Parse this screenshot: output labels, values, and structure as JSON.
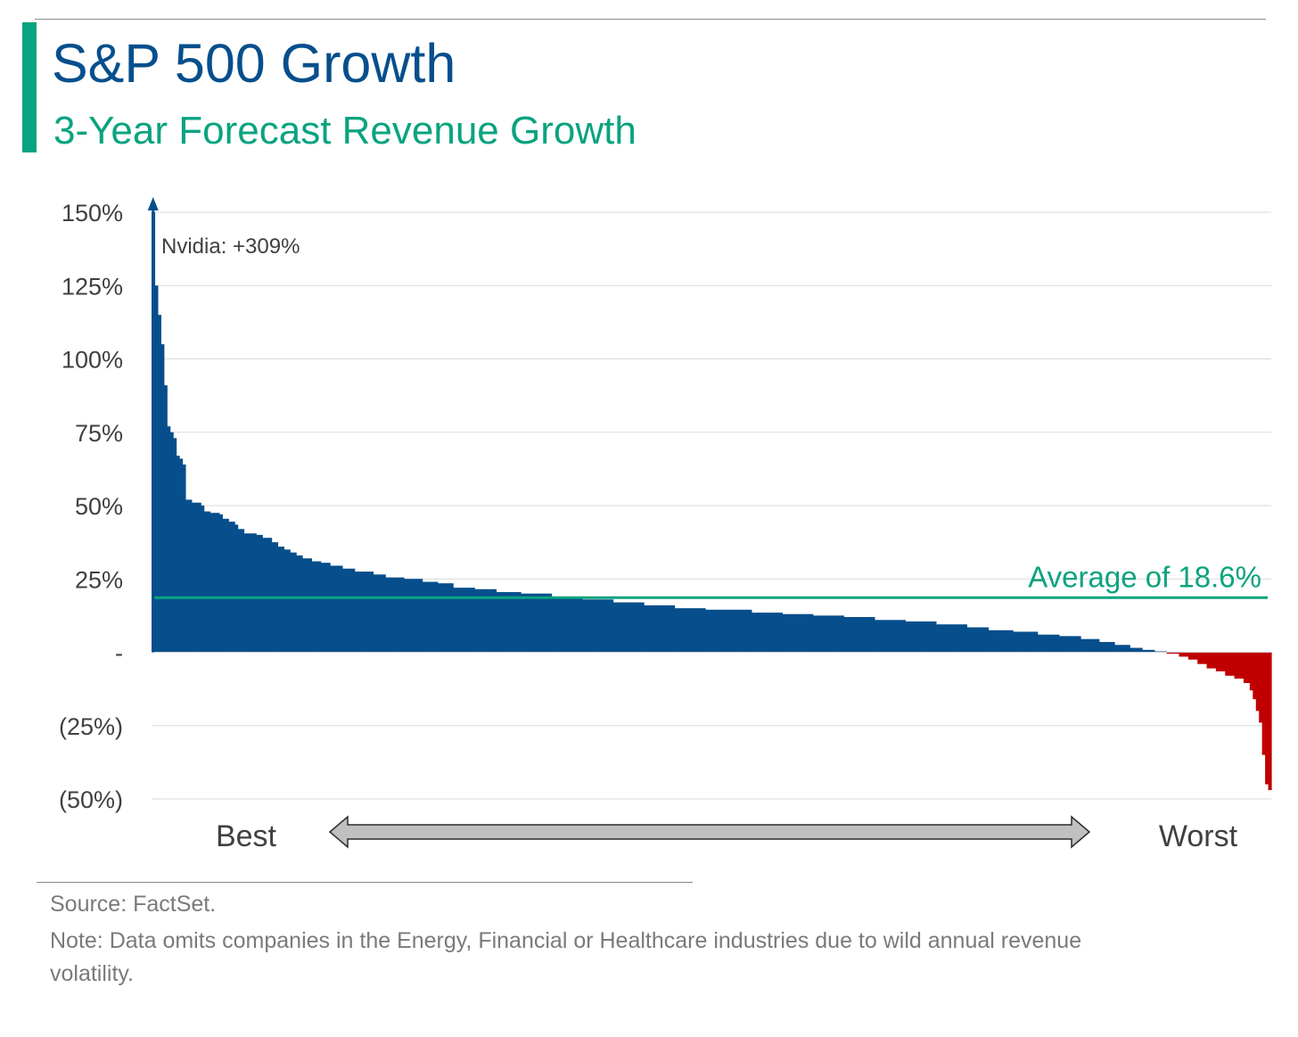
{
  "header": {
    "title": "S&P 500 Growth",
    "subtitle": "3-Year Forecast Revenue Growth"
  },
  "footer": {
    "source": "Source: FactSet.",
    "note": "Note: Data omits companies in the Energy, Financial or Healthcare industries due to wild annual revenue volatility."
  },
  "colors": {
    "title": "#064f8c",
    "accent": "#0aa37f",
    "positive_bars": "#064f8c",
    "negative_bars": "#c00000",
    "average_line": "#0aa37f",
    "range_arrow": "#c0c0c0"
  },
  "chart_data": {
    "type": "bar",
    "title": "",
    "xlabel": "",
    "ylabel": "",
    "ylim": [
      -50,
      150
    ],
    "y_ticks": [
      {
        "value": 150,
        "label": "150%"
      },
      {
        "value": 125,
        "label": "125%"
      },
      {
        "value": 100,
        "label": "100%"
      },
      {
        "value": 75,
        "label": "75%"
      },
      {
        "value": 50,
        "label": "50%"
      },
      {
        "value": 25,
        "label": "25%"
      },
      {
        "value": 0,
        "label": "-"
      },
      {
        "value": -25,
        "label": "(25%)"
      },
      {
        "value": -50,
        "label": "(50%)"
      }
    ],
    "grid": true,
    "sort_order": "descending",
    "x_labels": {
      "left": "Best",
      "right": "Worst"
    },
    "series": [
      {
        "units": "percent",
        "profile": [
          [
            0,
            309
          ],
          [
            1,
            125
          ],
          [
            2,
            115
          ],
          [
            3,
            105
          ],
          [
            4,
            91
          ],
          [
            5,
            77
          ],
          [
            6,
            75
          ],
          [
            7,
            73
          ],
          [
            8,
            67
          ],
          [
            9,
            66
          ],
          [
            10,
            64
          ],
          [
            11,
            52
          ],
          [
            13,
            51
          ],
          [
            16,
            50
          ],
          [
            17,
            48
          ],
          [
            19,
            47.5
          ],
          [
            22,
            47
          ],
          [
            23,
            45.5
          ],
          [
            25,
            44.5
          ],
          [
            27,
            43.5
          ],
          [
            28,
            42
          ],
          [
            30,
            40.5
          ],
          [
            34,
            40
          ],
          [
            36,
            39
          ],
          [
            39,
            37.5
          ],
          [
            41,
            36
          ],
          [
            43,
            35
          ],
          [
            45,
            34
          ],
          [
            47,
            33
          ],
          [
            49,
            32
          ],
          [
            52,
            31
          ],
          [
            55,
            30.5
          ],
          [
            58,
            29.5
          ],
          [
            62,
            28.5
          ],
          [
            66,
            27.5
          ],
          [
            72,
            26.5
          ],
          [
            76,
            25.5
          ],
          [
            82,
            25
          ],
          [
            88,
            24
          ],
          [
            93,
            23.5
          ],
          [
            98,
            22
          ],
          [
            105,
            21.5
          ],
          [
            112,
            20.5
          ],
          [
            120,
            20
          ],
          [
            130,
            19
          ],
          [
            140,
            18
          ],
          [
            150,
            17
          ],
          [
            160,
            16
          ],
          [
            170,
            15
          ],
          [
            180,
            14.5
          ],
          [
            195,
            13.5
          ],
          [
            205,
            13
          ],
          [
            215,
            12.5
          ],
          [
            225,
            12
          ],
          [
            235,
            11
          ],
          [
            245,
            10.5
          ],
          [
            255,
            9.5
          ],
          [
            265,
            8.5
          ],
          [
            272,
            7.5
          ],
          [
            280,
            7
          ],
          [
            288,
            6
          ],
          [
            295,
            5.5
          ],
          [
            302,
            4.5
          ],
          [
            308,
            3.5
          ],
          [
            313,
            2.5
          ],
          [
            318,
            1.5
          ],
          [
            322,
            0.8
          ],
          [
            326,
            0.3
          ],
          [
            330,
            -0.5
          ],
          [
            334,
            -1.5
          ],
          [
            337,
            -2.5
          ],
          [
            340,
            -4
          ],
          [
            343,
            -5.5
          ],
          [
            346,
            -6.5
          ],
          [
            349,
            -8
          ],
          [
            352,
            -9
          ],
          [
            355,
            -10.5
          ],
          [
            357,
            -13
          ],
          [
            358,
            -16
          ],
          [
            359,
            -20
          ],
          [
            360,
            -24
          ],
          [
            361,
            -35
          ],
          [
            362,
            -45
          ],
          [
            363,
            -47
          ]
        ],
        "count": 364
      }
    ],
    "annotations": [
      {
        "text": "Nvidia: +309%",
        "value": 309
      },
      {
        "text": "Average of 18.6%",
        "value": 18.6
      }
    ],
    "average": 18.6
  }
}
